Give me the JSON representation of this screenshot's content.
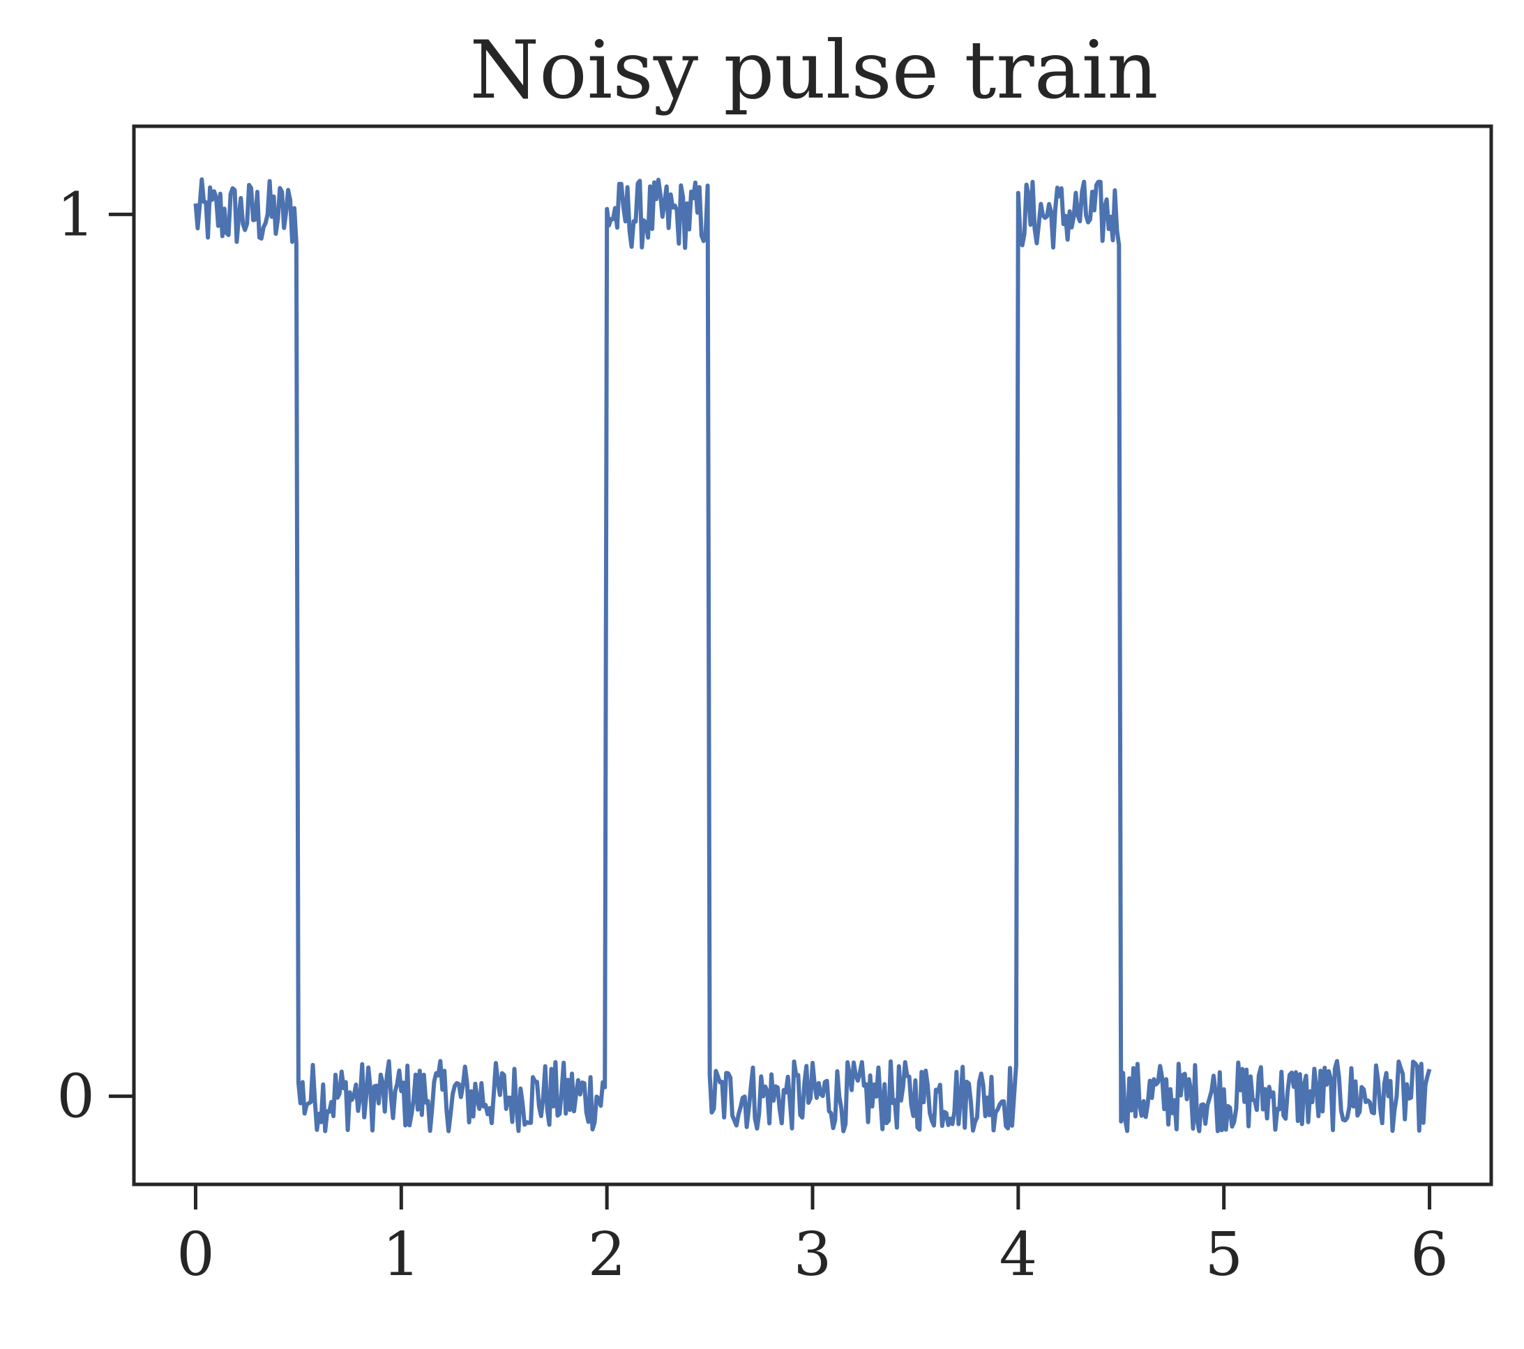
{
  "chart_data": {
    "type": "line",
    "title": "Noisy pulse train",
    "xlabel": "",
    "ylabel": "",
    "xlim": [
      -0.3,
      6.3
    ],
    "ylim": [
      -0.1,
      1.1
    ],
    "xticks": [
      0,
      1,
      2,
      3,
      4,
      5,
      6
    ],
    "yticks": [
      0,
      1
    ],
    "grid": false,
    "line_color": "#4C72B0",
    "axis_color": "#262626",
    "series": [
      {
        "pulses": [
          [
            0.0,
            0.5
          ],
          [
            2.0,
            2.5
          ],
          [
            4.0,
            4.5
          ]
        ],
        "high_level": 1.0,
        "low_level": 0.0,
        "noise_amplitude": 0.04,
        "x_start": 0.0,
        "x_end": 6.0,
        "sample_step": 0.01
      }
    ]
  }
}
